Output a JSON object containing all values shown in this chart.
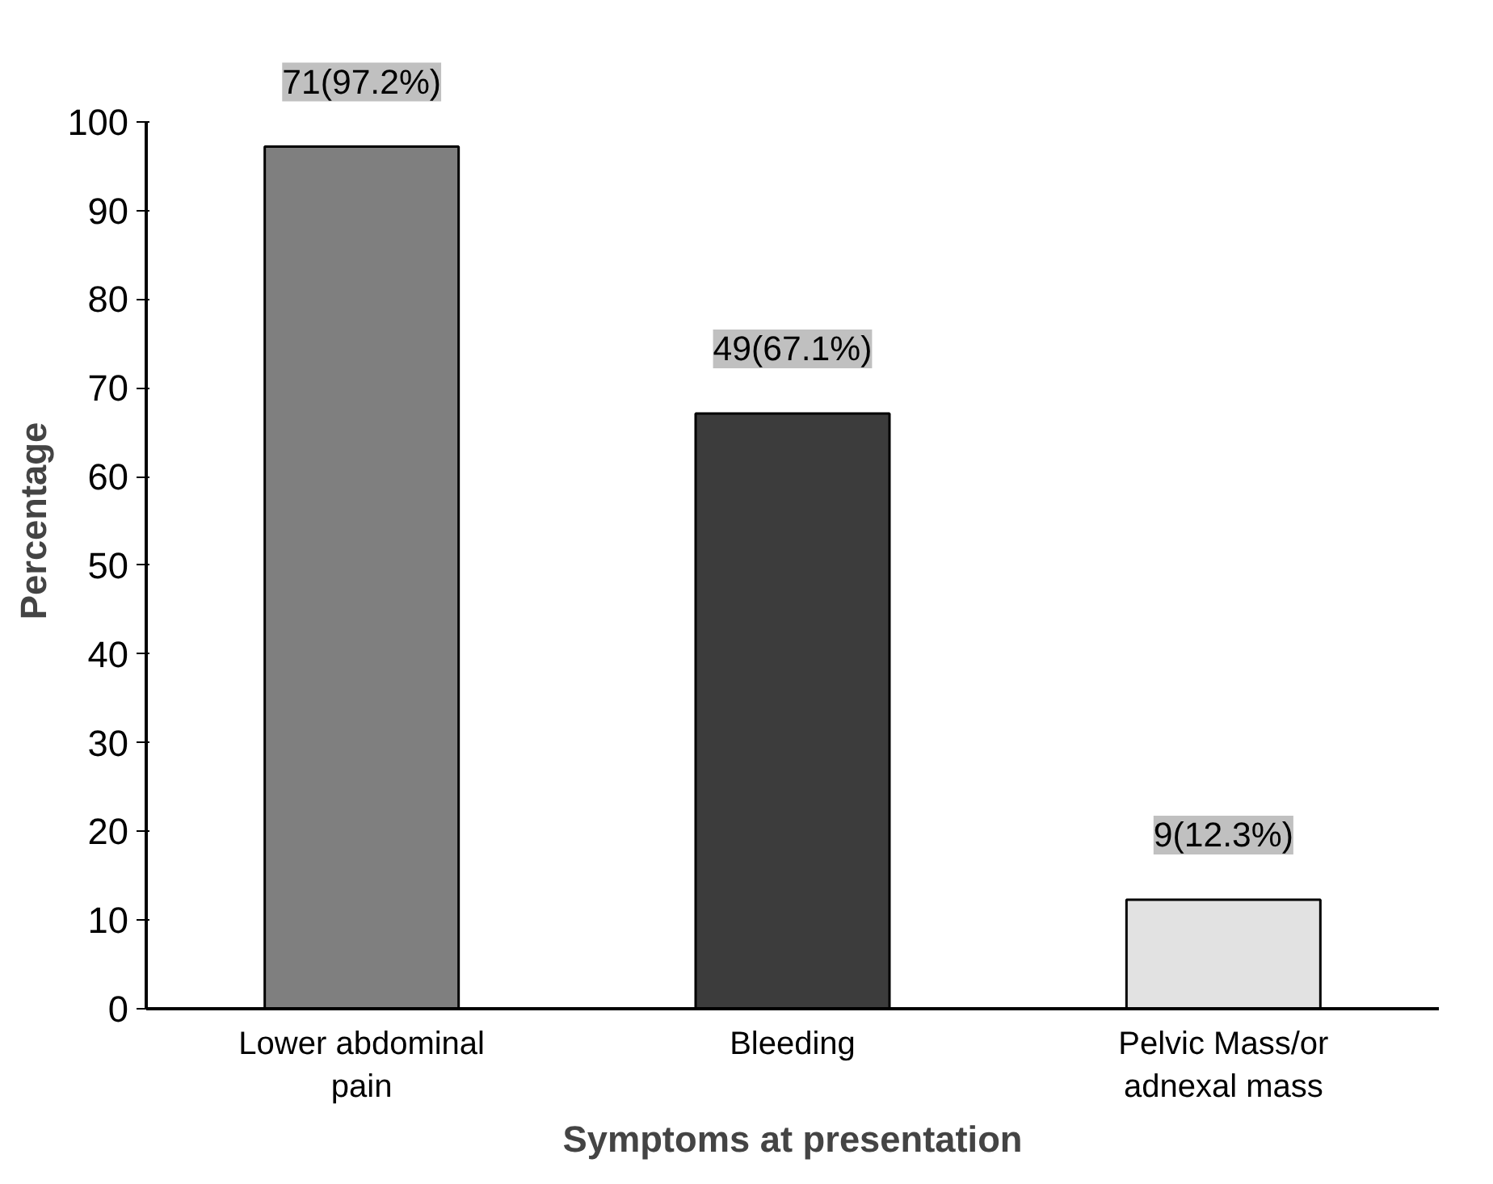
{
  "chart_data": {
    "type": "bar",
    "xlabel": "Symptoms at presentation",
    "ylabel": "Percentage",
    "categories": [
      "Lower abdominal pain",
      "Bleeding",
      "Pelvic Mass/or adnexal mass"
    ],
    "values": [
      97.2,
      67.1,
      12.3
    ],
    "colors": [
      "#7f7f7f",
      "#3c3c3c",
      "#e2e2e2"
    ],
    "value_labels": [
      "71(97.2%)",
      "49(67.1%)",
      "9(12.3%)"
    ],
    "ylim": [
      0,
      100
    ],
    "yticks": [
      0,
      10,
      20,
      30,
      40,
      50,
      60,
      70,
      80,
      90,
      100
    ],
    "grid": false
  }
}
